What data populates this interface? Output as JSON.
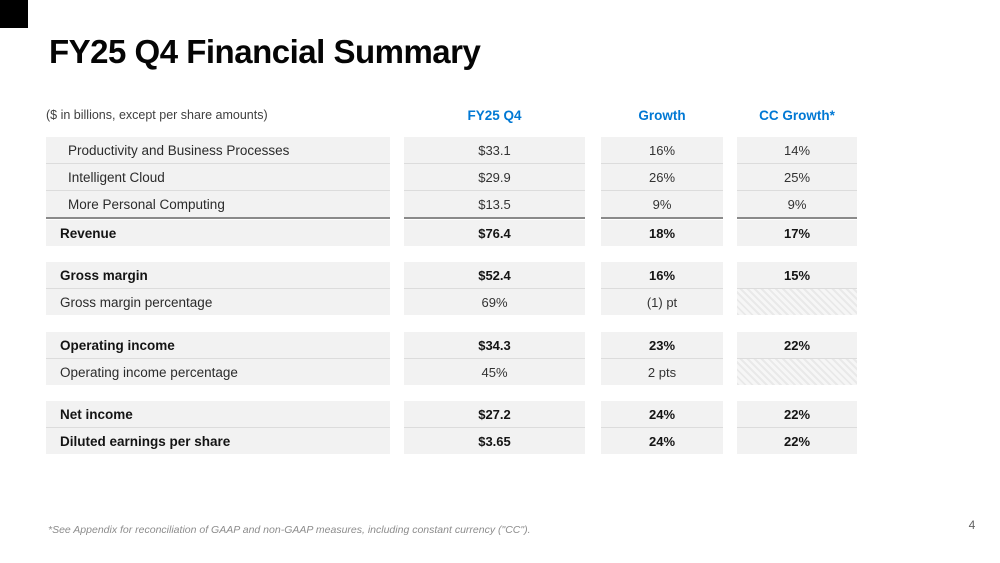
{
  "slide": {
    "title": "FY25 Q4 Financial Summary",
    "footnote": "*See Appendix for reconciliation of GAAP and non-GAAP measures, including constant currency (\"CC\").",
    "page_number": "4",
    "accent_color": "#0078D4",
    "row_background_color": "#f2f2f2"
  },
  "table": {
    "note": "($ in billions, except per share amounts)",
    "columns": [
      "FY25 Q4",
      "Growth",
      "CC Growth*"
    ],
    "sections": [
      {
        "rows": [
          {
            "label": "Productivity and Business Processes",
            "fy25_q4": "$33.1",
            "growth": "16%",
            "cc_growth": "14%"
          },
          {
            "label": "Intelligent Cloud",
            "fy25_q4": "$29.9",
            "growth": "26%",
            "cc_growth": "25%"
          },
          {
            "label": "More Personal Computing",
            "fy25_q4": "$13.5",
            "growth": "9%",
            "cc_growth": "9%"
          },
          {
            "label": "Revenue",
            "fy25_q4": "$76.4",
            "growth": "18%",
            "cc_growth": "17%"
          }
        ]
      },
      {
        "rows": [
          {
            "label": "Gross margin",
            "fy25_q4": "$52.4",
            "growth": "16%",
            "cc_growth": "15%"
          },
          {
            "label": "Gross margin percentage",
            "fy25_q4": "69%",
            "growth": "(1) pt"
          }
        ]
      },
      {
        "rows": [
          {
            "label": "Operating income",
            "fy25_q4": "$34.3",
            "growth": "23%",
            "cc_growth": "22%"
          },
          {
            "label": "Operating income percentage",
            "fy25_q4": "45%",
            "growth": "2 pts"
          }
        ]
      },
      {
        "rows": [
          {
            "label": "Net income",
            "fy25_q4": "$27.2",
            "growth": "24%",
            "cc_growth": "22%"
          },
          {
            "label": "Diluted earnings per share",
            "fy25_q4": "$3.65",
            "growth": "24%",
            "cc_growth": "22%"
          }
        ]
      }
    ]
  }
}
